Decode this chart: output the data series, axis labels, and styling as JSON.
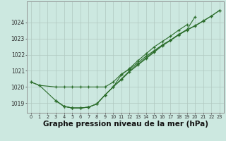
{
  "background_color": "#cce8e0",
  "grid_color": "#b0c8c0",
  "line_color": "#2d6e2d",
  "marker_color": "#2d6e2d",
  "xlabel": "Graphe pression niveau de la mer (hPa)",
  "xlabel_fontsize": 7.5,
  "xlim": [
    -0.5,
    23.5
  ],
  "ylim": [
    1018.4,
    1025.3
  ],
  "yticks": [
    1019,
    1020,
    1021,
    1022,
    1023,
    1024
  ],
  "xticks": [
    0,
    1,
    2,
    3,
    4,
    5,
    6,
    7,
    8,
    9,
    10,
    11,
    12,
    13,
    14,
    15,
    16,
    17,
    18,
    19,
    20,
    21,
    22,
    23
  ],
  "series": [
    {
      "x": [
        0,
        1,
        3,
        4,
        5,
        6,
        7,
        8,
        9,
        10,
        11,
        12,
        13,
        14,
        15,
        16,
        17,
        18,
        19,
        20,
        21,
        22,
        23
      ],
      "y": [
        1020.3,
        1020.1,
        1020.0,
        1020.0,
        1020.0,
        1020.0,
        1020.0,
        1020.0,
        1020.0,
        1020.3,
        1020.8,
        1021.1,
        1021.5,
        1021.9,
        1022.25,
        1022.6,
        1022.9,
        1023.25,
        1023.55,
        1023.8,
        1024.1,
        1024.4,
        1024.75
      ]
    },
    {
      "x": [
        0,
        1,
        3,
        4,
        5,
        6,
        7,
        8,
        9,
        10,
        11,
        12,
        13,
        14,
        15,
        16,
        17,
        18,
        19,
        20,
        21,
        22,
        23
      ],
      "y": [
        1020.3,
        1020.1,
        1019.15,
        1018.8,
        1018.7,
        1018.7,
        1018.75,
        1018.95,
        1019.5,
        1020.0,
        1020.45,
        1020.95,
        1021.35,
        1021.75,
        1022.15,
        1022.55,
        1022.88,
        1023.22,
        1023.52,
        1023.78,
        1024.08,
        1024.4,
        1024.75
      ]
    },
    {
      "x": [
        3,
        4,
        5,
        6,
        7,
        8,
        9,
        10,
        11,
        12,
        13,
        14,
        15,
        16,
        17,
        18,
        19,
        20
      ],
      "y": [
        1019.15,
        1018.8,
        1018.7,
        1018.7,
        1018.75,
        1018.95,
        1019.5,
        1020.0,
        1020.5,
        1021.0,
        1021.4,
        1021.8,
        1022.2,
        1022.6,
        1022.9,
        1023.25,
        1023.55,
        1024.35
      ]
    },
    {
      "x": [
        3,
        4,
        5,
        6,
        7,
        8,
        9,
        10,
        11,
        12,
        13,
        14,
        15,
        16,
        17,
        18,
        19
      ],
      "y": [
        1019.15,
        1018.8,
        1018.7,
        1018.7,
        1018.75,
        1018.95,
        1019.5,
        1020.0,
        1020.75,
        1021.15,
        1021.62,
        1022.05,
        1022.48,
        1022.82,
        1023.15,
        1023.52,
        1023.85
      ]
    }
  ]
}
